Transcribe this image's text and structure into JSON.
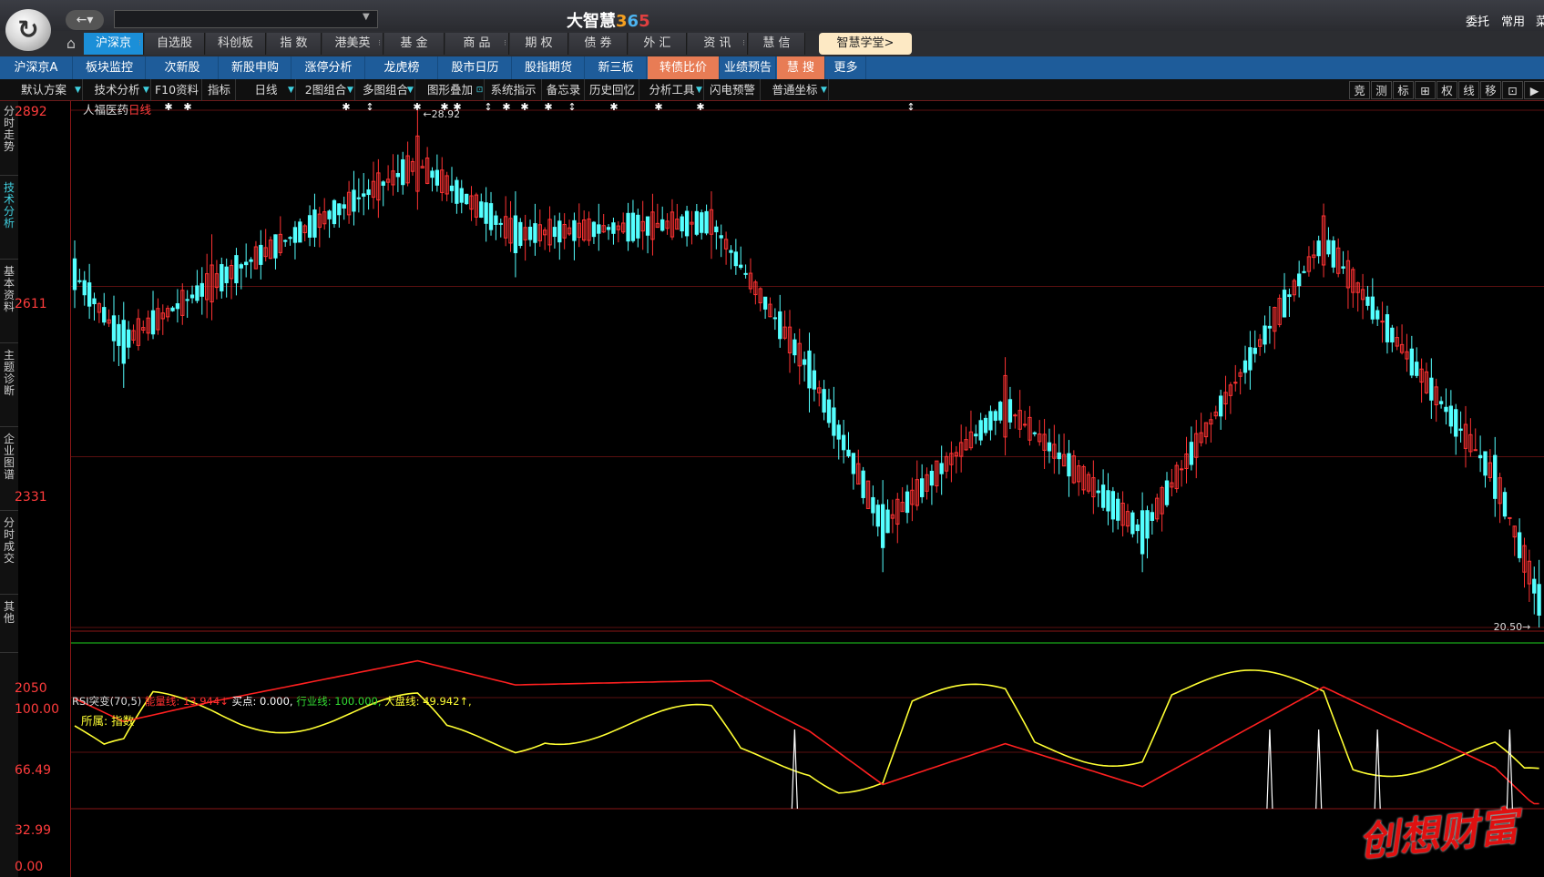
{
  "titlebar": {
    "logo_icon": "brand-logo-icon",
    "back_icon": "←▾",
    "search_value": "",
    "brand": "大智慧",
    "brand_num": [
      "3",
      "6",
      "5"
    ],
    "right_links": [
      "委托",
      "常用",
      "菜单"
    ]
  },
  "main_tabs": [
    "沪深京",
    "自选股",
    "科创板",
    "指 数",
    "港美英",
    "基 金",
    "商 品",
    "期 权",
    "债 券",
    "外 汇",
    "资 讯",
    "慧 信"
  ],
  "wisdom_btn": "智慧学堂>",
  "sub_tabs": [
    "沪深京A",
    "板块监控",
    "次新股",
    "新股申购",
    "涨停分析",
    "龙虎榜",
    "股市日历",
    "股指期货",
    "新三板",
    "转债比价",
    "业绩预告",
    "慧 搜",
    "更多"
  ],
  "toolbar": [
    "默认方案",
    "技术分析",
    "F10资料",
    "指标",
    "日线",
    "2图组合",
    "多图组合",
    "图形叠加",
    "系统指示",
    "备忘录",
    "历史回忆",
    "分析工具",
    "闪电预警",
    "普通坐标"
  ],
  "toolbar_right": [
    "竞",
    "测",
    "标",
    "⊞",
    "权",
    "线",
    "移",
    "⊡",
    "▶"
  ],
  "side_tabs": [
    "分时走势",
    "技术分析",
    "基本资料",
    "主题诊断",
    "企业图谱",
    "分时成交",
    "其他"
  ],
  "price_axis": [
    "2892",
    "2611",
    "2331",
    "2050"
  ],
  "stock_name": "人福医药",
  "period": "日线",
  "max_label": "28.92",
  "min_label": "20.50",
  "rsi_axis": [
    "100.00",
    "66.49",
    "32.99",
    "0.00"
  ],
  "rsi": {
    "name": "RSI突变(70,5)",
    "items": [
      {
        "label": "能量线: 13.944",
        "arrow": "↓",
        "color": "#ff3030"
      },
      {
        "label": "买点: 0.000,",
        "arrow": "",
        "color": "#ffffff"
      },
      {
        "label": "行业线: 100.000,",
        "arrow": "",
        "color": "#33dd33"
      },
      {
        "label": "大盘线: 49.942",
        "arrow": "↑,",
        "color": "#ffff33"
      }
    ]
  },
  "rsi_sub": {
    "a": "所属: ",
    "b": "指数"
  },
  "watermark": "创想财富",
  "colors": {
    "up": "#ff3333",
    "down": "#54ffff",
    "tab_active": "#1b8fd8",
    "subbar": "#1e5c9a",
    "highlight": "#e87c55"
  },
  "chart_data": {
    "type": "candlestick",
    "ylim": [
      20.5,
      28.92
    ],
    "samples": [
      {
        "i": 0,
        "open": 26.5,
        "close": 26.0,
        "high": 26.8,
        "low": 25.7
      },
      {
        "i": 10,
        "open": 25.5,
        "close": 24.8,
        "high": 25.8,
        "low": 24.4
      },
      {
        "i": 28,
        "open": 25.8,
        "close": 26.4,
        "high": 26.9,
        "low": 25.5
      },
      {
        "i": 70,
        "open": 27.6,
        "close": 28.5,
        "high": 28.92,
        "low": 27.3
      },
      {
        "i": 90,
        "open": 27.2,
        "close": 26.6,
        "high": 27.6,
        "low": 26.2
      },
      {
        "i": 130,
        "open": 26.9,
        "close": 27.3,
        "high": 27.6,
        "low": 26.5
      },
      {
        "i": 150,
        "open": 25.0,
        "close": 24.4,
        "high": 25.3,
        "low": 24.0
      },
      {
        "i": 165,
        "open": 22.5,
        "close": 21.8,
        "high": 22.9,
        "low": 21.4
      },
      {
        "i": 190,
        "open": 23.6,
        "close": 24.6,
        "high": 24.9,
        "low": 23.3
      },
      {
        "i": 218,
        "open": 22.4,
        "close": 21.7,
        "high": 22.7,
        "low": 21.4
      },
      {
        "i": 255,
        "open": 26.4,
        "close": 27.2,
        "high": 27.4,
        "low": 26.2
      },
      {
        "i": 290,
        "open": 23.3,
        "close": 22.6,
        "high": 23.6,
        "low": 22.3
      },
      {
        "i": 299,
        "open": 21.2,
        "close": 20.7,
        "high": 21.6,
        "low": 20.5
      }
    ]
  }
}
